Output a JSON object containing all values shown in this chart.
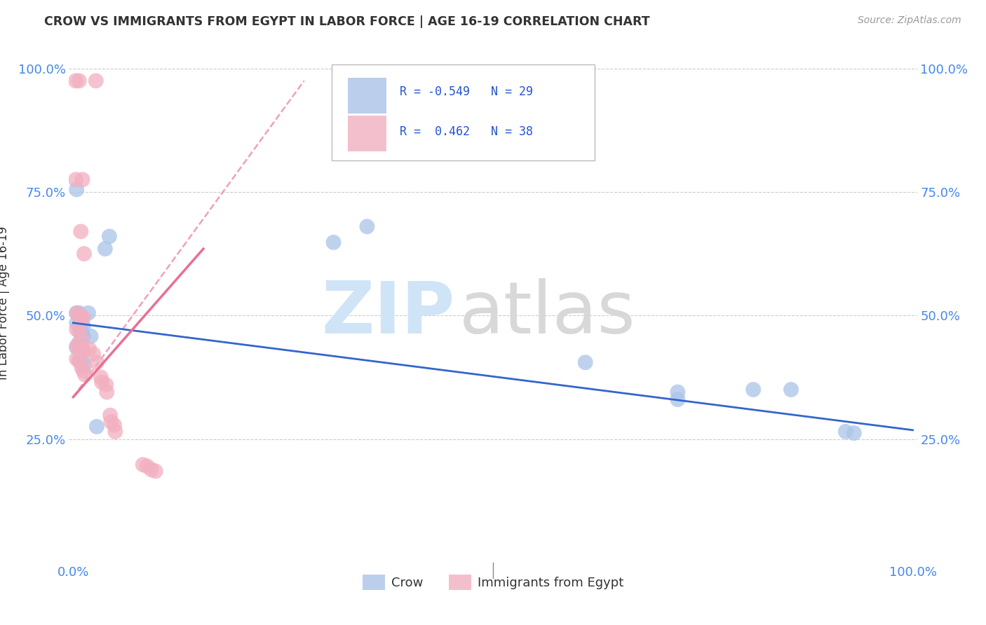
{
  "title": "CROW VS IMMIGRANTS FROM EGYPT IN LABOR FORCE | AGE 16-19 CORRELATION CHART",
  "source": "Source: ZipAtlas.com",
  "ylabel": "In Labor Force | Age 16-19",
  "crow_color": "#aac4e8",
  "egypt_color": "#f2afc0",
  "crow_R": "-0.549",
  "crow_N": "29",
  "egypt_R": "0.462",
  "egypt_N": "38",
  "legend_label_crow": "Crow",
  "legend_label_egypt": "Immigrants from Egypt",
  "crow_points": [
    [
      0.004,
      0.755
    ],
    [
      0.004,
      0.505
    ],
    [
      0.007,
      0.505
    ],
    [
      0.004,
      0.485
    ],
    [
      0.007,
      0.48
    ],
    [
      0.01,
      0.482
    ],
    [
      0.012,
      0.478
    ],
    [
      0.01,
      0.462
    ],
    [
      0.012,
      0.458
    ],
    [
      0.007,
      0.445
    ],
    [
      0.01,
      0.44
    ],
    [
      0.004,
      0.435
    ],
    [
      0.007,
      0.41
    ],
    [
      0.01,
      0.408
    ],
    [
      0.013,
      0.398
    ],
    [
      0.018,
      0.505
    ],
    [
      0.021,
      0.458
    ],
    [
      0.028,
      0.275
    ],
    [
      0.038,
      0.635
    ],
    [
      0.043,
      0.66
    ],
    [
      0.31,
      0.648
    ],
    [
      0.35,
      0.68
    ],
    [
      0.61,
      0.405
    ],
    [
      0.72,
      0.345
    ],
    [
      0.72,
      0.33
    ],
    [
      0.81,
      0.35
    ],
    [
      0.855,
      0.35
    ],
    [
      0.92,
      0.265
    ],
    [
      0.93,
      0.262
    ]
  ],
  "egypt_points": [
    [
      0.003,
      0.975
    ],
    [
      0.007,
      0.975
    ],
    [
      0.027,
      0.975
    ],
    [
      0.003,
      0.775
    ],
    [
      0.011,
      0.775
    ],
    [
      0.009,
      0.67
    ],
    [
      0.013,
      0.625
    ],
    [
      0.004,
      0.505
    ],
    [
      0.007,
      0.5
    ],
    [
      0.01,
      0.498
    ],
    [
      0.012,
      0.495
    ],
    [
      0.004,
      0.472
    ],
    [
      0.007,
      0.468
    ],
    [
      0.01,
      0.452
    ],
    [
      0.004,
      0.438
    ],
    [
      0.007,
      0.435
    ],
    [
      0.01,
      0.432
    ],
    [
      0.012,
      0.43
    ],
    [
      0.004,
      0.412
    ],
    [
      0.007,
      0.408
    ],
    [
      0.01,
      0.395
    ],
    [
      0.012,
      0.388
    ],
    [
      0.014,
      0.38
    ],
    [
      0.019,
      0.432
    ],
    [
      0.024,
      0.422
    ],
    [
      0.028,
      0.405
    ],
    [
      0.033,
      0.375
    ],
    [
      0.034,
      0.365
    ],
    [
      0.039,
      0.36
    ],
    [
      0.04,
      0.345
    ],
    [
      0.044,
      0.298
    ],
    [
      0.045,
      0.285
    ],
    [
      0.049,
      0.278
    ],
    [
      0.05,
      0.265
    ],
    [
      0.083,
      0.198
    ],
    [
      0.088,
      0.195
    ],
    [
      0.093,
      0.188
    ],
    [
      0.098,
      0.185
    ]
  ],
  "crow_line": [
    [
      0.0,
      0.485
    ],
    [
      1.0,
      0.268
    ]
  ],
  "egypt_line_solid": [
    [
      0.0,
      0.335
    ],
    [
      0.155,
      0.635
    ]
  ],
  "egypt_line_dashed": [
    [
      0.0,
      0.335
    ],
    [
      0.275,
      0.975
    ]
  ],
  "egypt_line_color": "#e87090",
  "egypt_dashed_color": "#f0a0b8",
  "crow_line_color": "#3366cc",
  "watermark_zip_color": "#d0e4f7",
  "watermark_atlas_color": "#d8d8d8"
}
